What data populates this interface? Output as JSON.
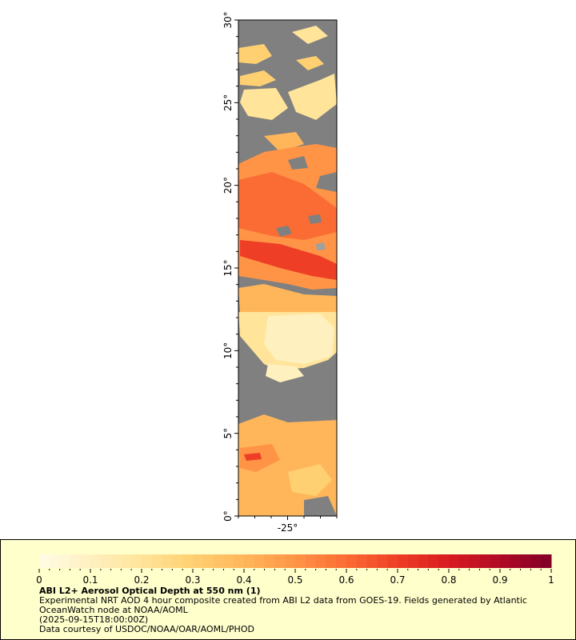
{
  "map": {
    "lat_axis_labels": [
      "30°",
      "25°",
      "20°",
      "15°",
      "10°",
      "5°",
      "0°"
    ],
    "lat_ticks": [
      30,
      25,
      20,
      15,
      10,
      5,
      0
    ],
    "lon_axis_labels": [
      "-25°"
    ],
    "lon_ticks": [
      -25
    ],
    "lat_range": [
      0,
      30
    ],
    "lon_range": [
      -28,
      -22
    ],
    "no_data_color": "#808080"
  },
  "colorbar": {
    "tick_labels": [
      "0",
      "0.1",
      "0.2",
      "0.3",
      "0.4",
      "0.5",
      "0.6",
      "0.7",
      "0.8",
      "0.9",
      "1"
    ],
    "range": [
      0,
      1
    ],
    "colors": [
      "#fffbe6",
      "#fff0c0",
      "#ffe49a",
      "#ffd071",
      "#ffb65a",
      "#ff9446",
      "#fb6c34",
      "#ee3e26",
      "#d81b20",
      "#b10a26",
      "#800026"
    ]
  },
  "caption": {
    "title": "ABI L2+ Aerosol Optical Depth at 550 nm (1)",
    "description": "Experimental NRT AOD 4 hour composite created from ABI L2 data from GOES-19. Fields generated by Atlantic OceanWatch node at NOAA/AOML",
    "timestamp": "(2025-09-15T18:00:00Z)",
    "credit": "Data courtesy of USDOC/NOAA/OAR/AOML/PHOD"
  }
}
